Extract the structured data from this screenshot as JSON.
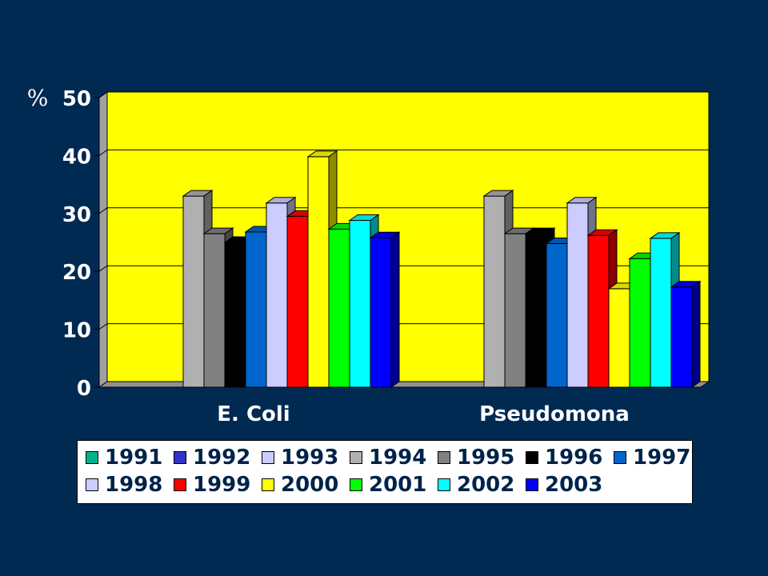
{
  "chart_data": {
    "type": "bar",
    "ylabel": "%",
    "ylim": [
      0,
      50
    ],
    "yticks": [
      0,
      10,
      20,
      30,
      40,
      50
    ],
    "categories": [
      "E. Coli",
      "Pseudomona"
    ],
    "grid": true,
    "legend_position": "bottom",
    "colors": {
      "background": "#002a52",
      "plot_area": "#ffff00",
      "axis_text": "#ffffff",
      "legend_text": "#00234a"
    },
    "series": [
      {
        "name": "1991",
        "color": "#00b38a",
        "values": [
          0,
          0
        ]
      },
      {
        "name": "1992",
        "color": "#3333cc",
        "values": [
          0,
          0
        ]
      },
      {
        "name": "1993",
        "color": "#ccccff",
        "values": [
          0,
          0
        ]
      },
      {
        "name": "1994",
        "color": "#b0b0b0",
        "values": [
          33,
          33
        ]
      },
      {
        "name": "1995",
        "color": "#808080",
        "values": [
          26.5,
          26.5
        ]
      },
      {
        "name": "1996",
        "color": "#000000",
        "values": [
          25,
          26.5
        ]
      },
      {
        "name": "1997",
        "color": "#0066cc",
        "values": [
          26.8,
          24.8
        ]
      },
      {
        "name": "1998",
        "color": "#ccccff",
        "values": [
          31.8,
          31.8
        ]
      },
      {
        "name": "1999",
        "color": "#ff0000",
        "values": [
          29.5,
          26.2
        ]
      },
      {
        "name": "2000",
        "color": "#ffff00",
        "values": [
          39.8,
          17
        ]
      },
      {
        "name": "2001",
        "color": "#00ff00",
        "values": [
          27.3,
          22.2
        ]
      },
      {
        "name": "2002",
        "color": "#00ffff",
        "values": [
          28.8,
          25.7
        ]
      },
      {
        "name": "2003",
        "color": "#0000ff",
        "values": [
          25.8,
          17.3
        ]
      }
    ]
  }
}
